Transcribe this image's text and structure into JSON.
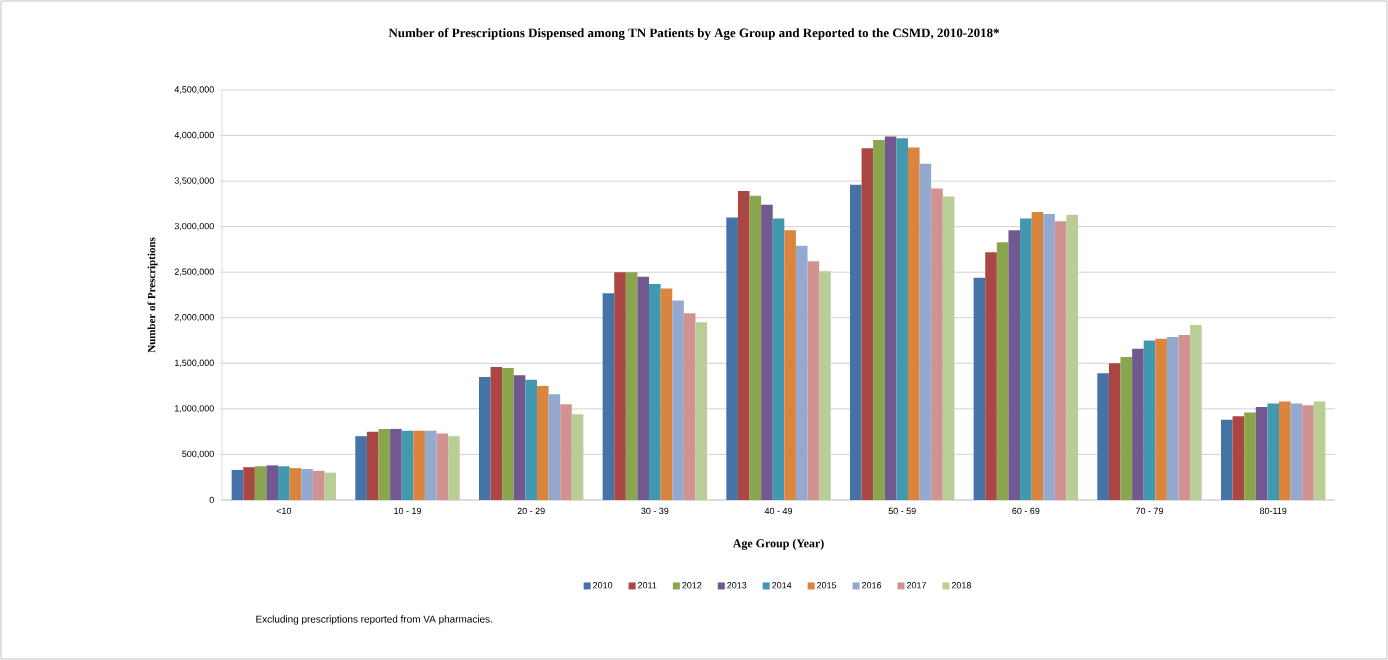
{
  "chart_data": {
    "type": "bar",
    "title": "Number of Prescriptions Dispensed among TN Patients by Age Group and Reported to the CSMD, 2010-2018*",
    "xlabel": "Age Group (Year)",
    "ylabel": "Number of Prescriptions",
    "categories": [
      "<10",
      "10 - 19",
      "20 - 29",
      "30 - 39",
      "40 - 49",
      "50 - 59",
      "60 - 69",
      "70 - 79",
      "80-119"
    ],
    "series": [
      {
        "name": "2010",
        "color": "#4572a7",
        "values": [
          330000,
          700000,
          1350000,
          2270000,
          3100000,
          3460000,
          2440000,
          1390000,
          880000
        ]
      },
      {
        "name": "2011",
        "color": "#aa4643",
        "values": [
          360000,
          750000,
          1460000,
          2500000,
          3390000,
          3860000,
          2720000,
          1500000,
          920000
        ]
      },
      {
        "name": "2012",
        "color": "#89a54e",
        "values": [
          370000,
          780000,
          1450000,
          2500000,
          3340000,
          3950000,
          2830000,
          1570000,
          960000
        ]
      },
      {
        "name": "2013",
        "color": "#71588f",
        "values": [
          380000,
          780000,
          1370000,
          2450000,
          3240000,
          3990000,
          2960000,
          1660000,
          1020000
        ]
      },
      {
        "name": "2014",
        "color": "#4198af",
        "values": [
          370000,
          760000,
          1320000,
          2370000,
          3090000,
          3970000,
          3090000,
          1750000,
          1060000
        ]
      },
      {
        "name": "2015",
        "color": "#db843d",
        "values": [
          350000,
          760000,
          1250000,
          2320000,
          2960000,
          3870000,
          3160000,
          1770000,
          1080000
        ]
      },
      {
        "name": "2016",
        "color": "#93a9cf",
        "values": [
          340000,
          760000,
          1160000,
          2190000,
          2790000,
          3690000,
          3140000,
          1790000,
          1060000
        ]
      },
      {
        "name": "2017",
        "color": "#d19392",
        "values": [
          320000,
          730000,
          1050000,
          2050000,
          2620000,
          3420000,
          3060000,
          1810000,
          1040000
        ]
      },
      {
        "name": "2018",
        "color": "#b9cd96",
        "values": [
          300000,
          700000,
          940000,
          1950000,
          2510000,
          3330000,
          3130000,
          1920000,
          1080000
        ]
      }
    ],
    "ylim": [
      0,
      4500000
    ],
    "yticks": [
      {
        "value": 0,
        "label": "0"
      },
      {
        "value": 500000,
        "label": "500,000"
      },
      {
        "value": 1000000,
        "label": "1,000,000"
      },
      {
        "value": 1500000,
        "label": "1,500,000"
      },
      {
        "value": 2000000,
        "label": "2,000,000"
      },
      {
        "value": 2500000,
        "label": "2,500,000"
      },
      {
        "value": 3000000,
        "label": "3,000,000"
      },
      {
        "value": 3500000,
        "label": "3,500,000"
      },
      {
        "value": 4000000,
        "label": "4,000,000"
      },
      {
        "value": 4500000,
        "label": "4,500,000"
      }
    ],
    "grid": "y",
    "legend": "bottom",
    "annotations": [
      "Excluding prescriptions reported from VA pharmacies."
    ]
  }
}
